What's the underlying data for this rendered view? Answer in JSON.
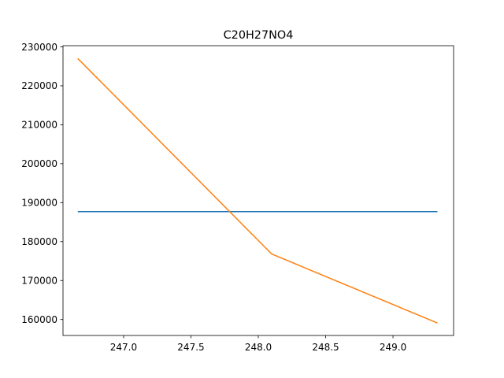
{
  "chart_data": {
    "type": "line",
    "title": "C20H27NO4",
    "xlabel": "",
    "ylabel": "",
    "xlim": [
      246.55,
      249.45
    ],
    "ylim": [
      155900,
      230300
    ],
    "xticks": [
      247.0,
      247.5,
      248.0,
      248.5,
      249.0
    ],
    "xtick_labels": [
      "247.0",
      "247.5",
      "248.0",
      "248.5",
      "249.0"
    ],
    "yticks": [
      160000,
      170000,
      180000,
      190000,
      200000,
      210000,
      220000,
      230000
    ],
    "ytick_labels": [
      "160000",
      "170000",
      "180000",
      "190000",
      "200000",
      "210000",
      "220000",
      "230000"
    ],
    "grid": false,
    "series": [
      {
        "color": "#1f77b4",
        "x": [
          246.66,
          249.33
        ],
        "y": [
          187700,
          187700
        ]
      },
      {
        "color": "#ff7f0e",
        "x": [
          246.66,
          248.1,
          249.33
        ],
        "y": [
          227000,
          176800,
          159100
        ]
      }
    ]
  }
}
